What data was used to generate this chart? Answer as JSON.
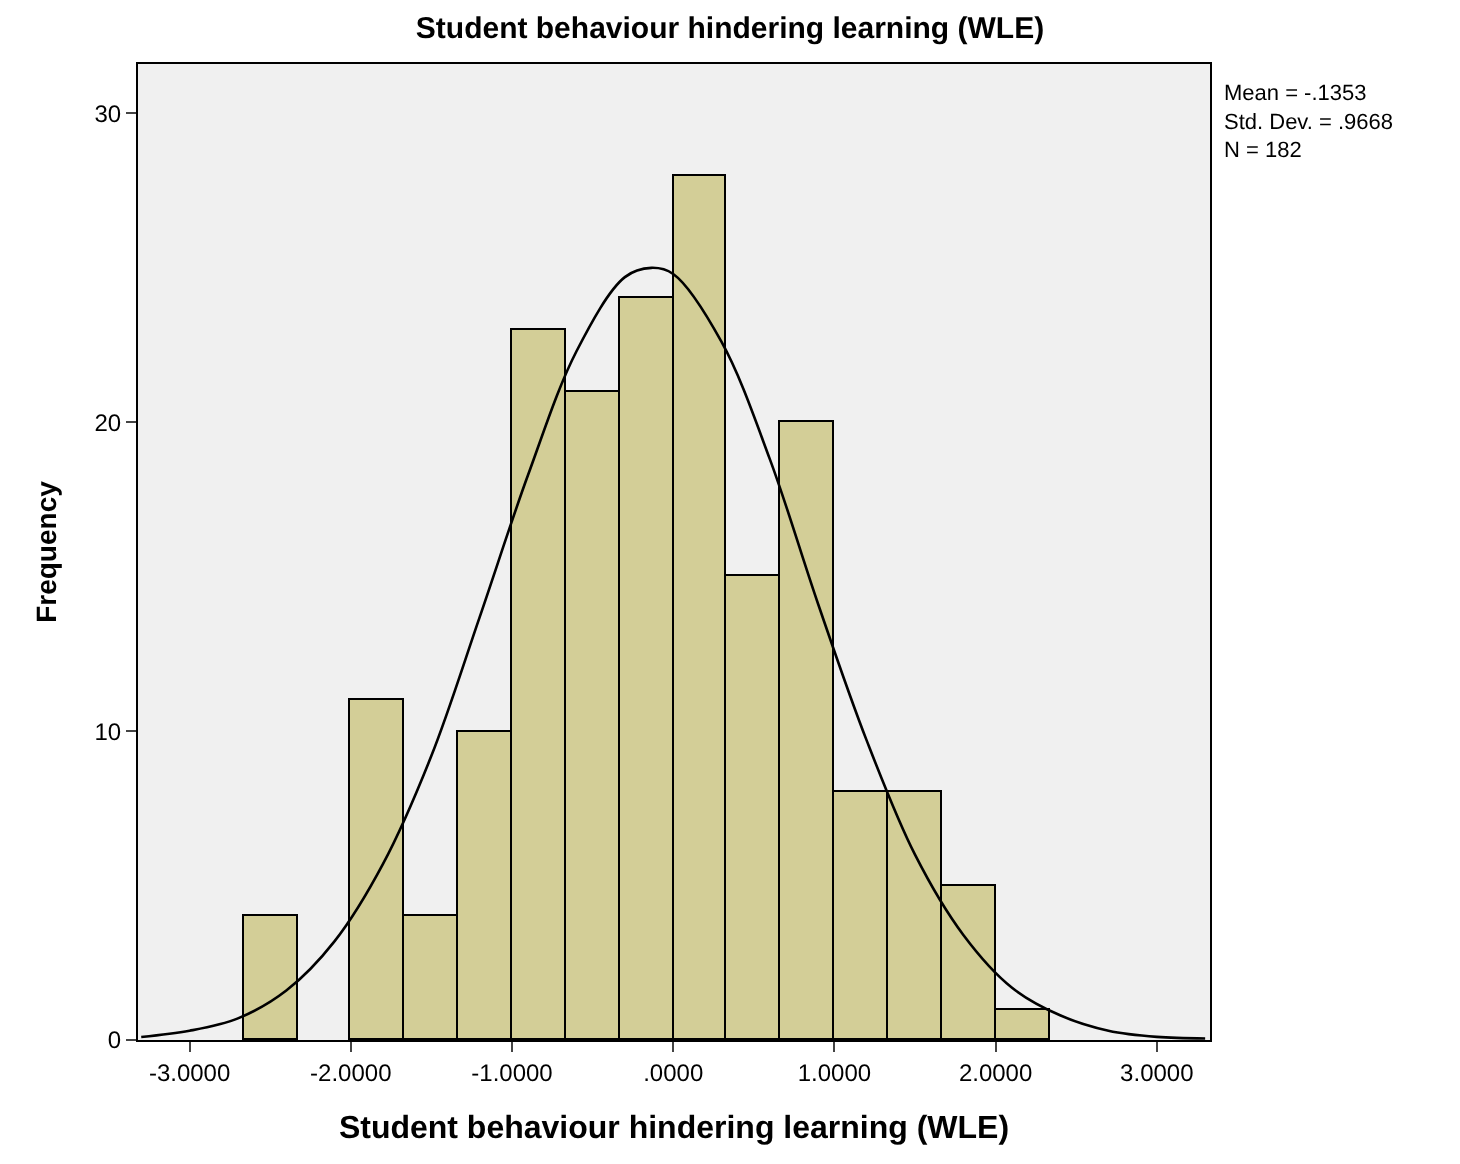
{
  "chart_data": {
    "type": "histogram",
    "title": "Student behaviour hindering learning (WLE)",
    "xlabel": "Student behaviour hindering learning (WLE)",
    "ylabel": "Frequency",
    "series": [
      {
        "color": "#d3ce97",
        "bins": [
          -2.6667,
          -2.3333,
          -2.0,
          -1.6667,
          -1.3333,
          -1.0,
          -0.6667,
          -0.3333,
          0.0,
          0.3333,
          0.6667,
          1.0,
          1.3333,
          1.6667,
          2.0,
          2.3333
        ],
        "values": [
          4,
          0,
          11,
          4,
          10,
          23,
          21,
          24,
          28,
          15,
          20,
          8,
          8,
          5,
          1
        ]
      },
      {
        "type": "line",
        "color": "#000000",
        "x": [
          -3.3,
          -3.0,
          -2.7,
          -2.4,
          -2.1,
          -1.8,
          -1.5,
          -1.2,
          -0.9,
          -0.6,
          -0.3,
          -0.1353,
          0.0,
          0.3,
          0.6,
          0.9,
          1.2,
          1.5,
          1.8,
          2.1,
          2.4,
          2.7,
          3.0,
          3.3
        ],
        "values": [
          0.1,
          0.3,
          0.7,
          1.6,
          3.2,
          5.7,
          9.2,
          13.7,
          18.3,
          22.3,
          24.7,
          25.0,
          24.8,
          22.6,
          18.8,
          14.1,
          9.7,
          6.0,
          3.4,
          1.7,
          0.8,
          0.3,
          0.1,
          0.05
        ]
      }
    ],
    "xlim": [
      -3.32,
      3.33
    ],
    "ylim": [
      0,
      31.6
    ],
    "xticks": [
      {
        "value": -3,
        "label": "-3.0000"
      },
      {
        "value": -2,
        "label": "-2.0000"
      },
      {
        "value": -1,
        "label": "-1.0000"
      },
      {
        "value": 0,
        "label": ".0000"
      },
      {
        "value": 1,
        "label": "1.0000"
      },
      {
        "value": 2,
        "label": "2.0000"
      },
      {
        "value": 3,
        "label": "3.0000"
      }
    ],
    "yticks": [
      0,
      10,
      20,
      30
    ],
    "annotations": [
      "Mean = -.1353",
      "Std. Dev. = .9668",
      "N = 182"
    ]
  }
}
